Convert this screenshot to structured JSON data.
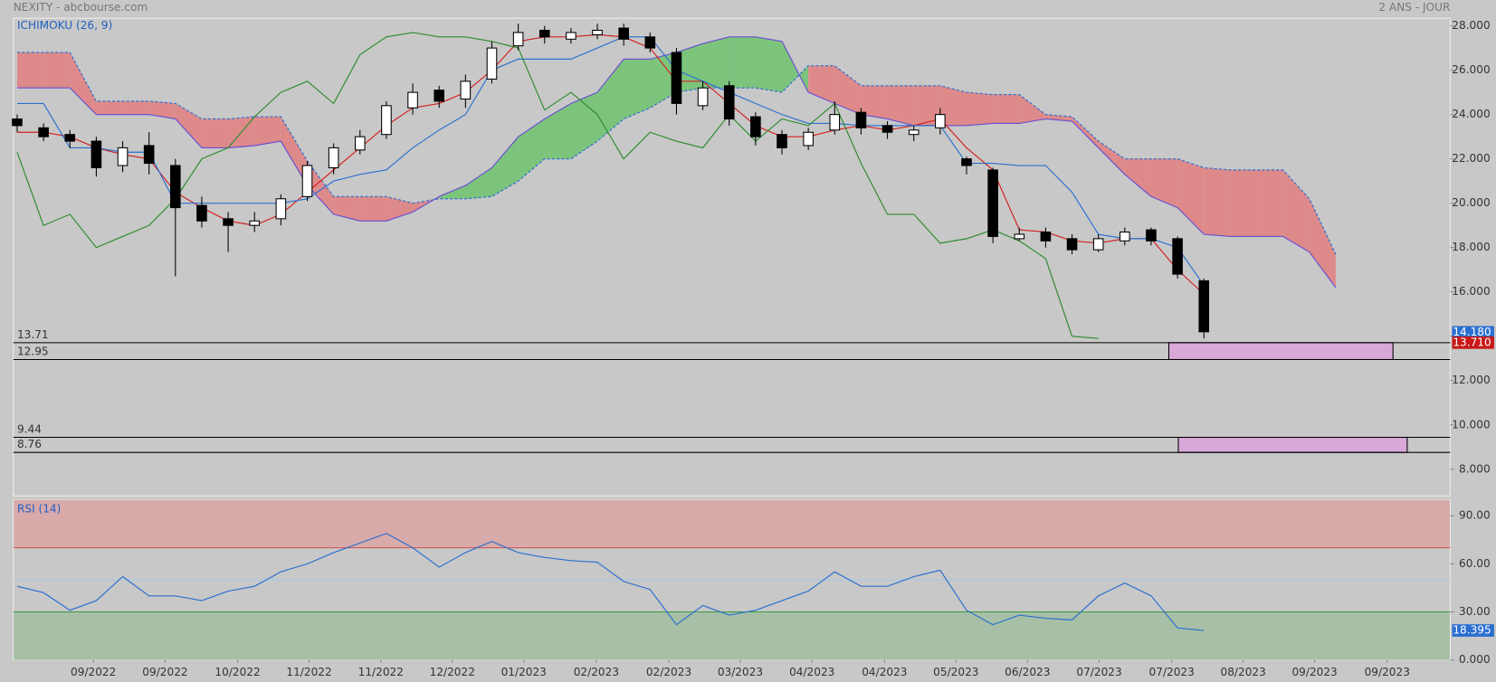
{
  "header": {
    "title": "NEXITY - abcbourse.com",
    "period": "2 ANS - JOUR"
  },
  "chart_data": [
    {
      "type": "candlestick",
      "title": "ICHIMOKU (26, 9)",
      "xlim": [
        -0.145,
        54.34
      ],
      "ylim": [
        6.796,
        28.344
      ],
      "yticks": [
        {
          "value": 28,
          "label": "28.000"
        },
        {
          "value": 26,
          "label": "26.000"
        },
        {
          "value": 24,
          "label": "24.000"
        },
        {
          "value": 22,
          "label": "22.000"
        },
        {
          "value": 20,
          "label": "20.000"
        },
        {
          "value": 18,
          "label": "18.000"
        },
        {
          "value": 16,
          "label": "16.000"
        },
        {
          "value": 14,
          "label": "14.000"
        },
        {
          "value": 12,
          "label": "12.000"
        },
        {
          "value": 10,
          "label": "10.000"
        },
        {
          "value": 8,
          "label": "8.000"
        }
      ],
      "open": [
        23.8,
        23.4,
        23.1,
        22.8,
        21.7,
        22.6,
        21.7,
        19.9,
        19.3,
        19.0,
        19.3,
        20.3,
        21.6,
        22.4,
        23.1,
        24.3,
        25.1,
        24.7,
        25.6,
        27.1,
        27.8,
        27.4,
        27.6,
        27.9,
        27.5,
        26.8,
        24.4,
        25.3,
        23.9,
        23.1,
        22.6,
        23.3,
        24.1,
        23.5,
        23.1,
        23.4,
        22.0,
        21.5,
        18.4,
        18.7,
        18.4,
        17.9,
        18.3,
        18.8,
        18.4,
        16.5
      ],
      "high": [
        24.0,
        23.6,
        23.3,
        23.0,
        22.8,
        23.2,
        22.0,
        20.3,
        19.6,
        19.6,
        20.4,
        21.9,
        22.7,
        23.3,
        24.6,
        25.4,
        25.3,
        25.8,
        27.3,
        28.1,
        28.0,
        27.9,
        28.1,
        28.1,
        27.7,
        27.0,
        25.5,
        25.5,
        24.1,
        23.3,
        23.4,
        24.6,
        24.3,
        23.7,
        23.5,
        24.3,
        22.1,
        21.6,
        18.9,
        18.9,
        18.6,
        18.6,
        18.9,
        18.9,
        18.5,
        16.6
      ],
      "low": [
        23.2,
        22.8,
        22.5,
        21.2,
        21.4,
        21.3,
        16.7,
        18.9,
        17.8,
        18.7,
        19.0,
        20.1,
        21.3,
        22.2,
        22.9,
        24.0,
        24.3,
        24.3,
        25.4,
        26.9,
        27.2,
        27.2,
        27.4,
        27.1,
        26.8,
        24.0,
        24.2,
        23.5,
        22.6,
        22.2,
        22.4,
        23.1,
        23.1,
        22.9,
        22.8,
        23.1,
        21.3,
        18.2,
        18.3,
        18.0,
        17.7,
        17.8,
        18.1,
        18.1,
        16.6,
        13.9
      ],
      "close": [
        23.5,
        23.0,
        22.8,
        21.6,
        22.5,
        21.8,
        19.8,
        19.2,
        19.0,
        19.2,
        20.2,
        21.7,
        22.5,
        23.0,
        24.4,
        25.0,
        24.6,
        25.5,
        27.0,
        27.7,
        27.5,
        27.7,
        27.8,
        27.4,
        27.0,
        24.5,
        25.2,
        23.8,
        23.0,
        22.5,
        23.2,
        24.0,
        23.4,
        23.2,
        23.3,
        24.0,
        21.7,
        18.5,
        18.6,
        18.3,
        17.9,
        18.4,
        18.7,
        18.3,
        16.8,
        14.2
      ],
      "lines": [
        {
          "color": "#d42020",
          "values": [
            23.2,
            23.2,
            23.0,
            22.5,
            22.2,
            22.0,
            20.5,
            19.8,
            19.2,
            19.0,
            19.5,
            20.5,
            21.5,
            22.5,
            23.5,
            24.3,
            24.5,
            25.0,
            26.0,
            27.3,
            27.5,
            27.5,
            27.6,
            27.5,
            27.0,
            25.5,
            25.5,
            24.5,
            23.5,
            23.0,
            23.0,
            23.3,
            23.5,
            23.3,
            23.5,
            23.8,
            22.5,
            21.5,
            18.8,
            18.7,
            18.3,
            18.2,
            18.4,
            18.4,
            17.0,
            15.9
          ]
        },
        {
          "color": "#2a6fd0",
          "values": [
            24.5,
            24.5,
            22.5,
            22.5,
            22.3,
            22.3,
            20.0,
            20.0,
            20.0,
            20.0,
            20.0,
            20.2,
            21.0,
            21.3,
            21.5,
            22.5,
            23.3,
            24.0,
            26.0,
            26.5,
            26.5,
            26.5,
            27.0,
            27.5,
            27.5,
            26.0,
            25.5,
            25.0,
            24.5,
            24.0,
            23.6,
            23.6,
            23.5,
            23.5,
            23.5,
            23.5,
            21.8,
            21.8,
            21.7,
            21.7,
            20.5,
            18.6,
            18.4,
            18.4,
            18.0,
            16.3
          ]
        },
        {
          "color": "#2e8b2e",
          "values": [
            22.3,
            19.0,
            19.5,
            18.0,
            18.5,
            19.0,
            20.2,
            22.0,
            22.5,
            23.9,
            25.0,
            25.5,
            24.5,
            26.7,
            27.5,
            27.7,
            27.5,
            27.5,
            27.3,
            27.0,
            24.2,
            25.0,
            24.0,
            22.0,
            23.2,
            22.8,
            22.5,
            24.0,
            22.8,
            23.8,
            23.5,
            24.5,
            21.8,
            19.5,
            19.5,
            18.2,
            18.4,
            18.8,
            18.3,
            17.5,
            14.0,
            13.9,
            null,
            null,
            null,
            null
          ]
        }
      ],
      "cloud": {
        "up_color": "#7cc47c",
        "down_color": "#de8a8a",
        "span_a_color": "#6a4fd0",
        "span_b_color": "#2a6fd0",
        "span_a": [
          25.2,
          25.2,
          25.2,
          24.0,
          24.0,
          24.0,
          23.8,
          22.5,
          22.5,
          22.6,
          22.8,
          20.8,
          19.5,
          19.2,
          19.2,
          19.6,
          20.3,
          20.8,
          21.6,
          23.0,
          23.8,
          24.5,
          25.0,
          26.5,
          26.5,
          26.8,
          27.2,
          27.5,
          27.5,
          27.3,
          25.0,
          24.5,
          24.0,
          23.8,
          23.5,
          23.5,
          23.5,
          23.6,
          23.6,
          23.8,
          23.7,
          22.5,
          21.3,
          20.3,
          19.8,
          18.6,
          18.5,
          18.5,
          18.5,
          17.8,
          16.2
        ],
        "span_b": [
          26.8,
          26.8,
          26.8,
          24.6,
          24.6,
          24.6,
          24.5,
          23.8,
          23.8,
          23.9,
          23.9,
          21.9,
          20.3,
          20.3,
          20.3,
          20.0,
          20.2,
          20.2,
          20.3,
          21.0,
          22.0,
          22.0,
          22.8,
          23.8,
          24.3,
          25.0,
          25.2,
          25.2,
          25.2,
          25.0,
          26.2,
          26.2,
          25.3,
          25.3,
          25.3,
          25.3,
          25.0,
          24.9,
          24.9,
          24.0,
          23.9,
          22.8,
          22.0,
          22.0,
          22.0,
          21.6,
          21.5,
          21.5,
          21.5,
          20.2,
          17.7
        ]
      },
      "levels": [
        13.71,
        12.95,
        9.44,
        8.76
      ],
      "zones": [
        {
          "top": 13.71,
          "bottom": 12.95,
          "from": 43.67,
          "to": 52.17,
          "color": "#d8a8d8"
        },
        {
          "top": 9.44,
          "bottom": 8.76,
          "from": 44.03,
          "to": 52.71,
          "color": "#d8a8d8"
        }
      ],
      "tags": [
        {
          "value": 14.18,
          "label": "14.180",
          "color": "#2a6fd0"
        },
        {
          "value": 13.71,
          "label": "13.710",
          "color": "#c81818"
        }
      ]
    },
    {
      "type": "line",
      "title": "RSI (14)",
      "color": "#2a6fd0",
      "xlim": [
        -0.145,
        54.34
      ],
      "ylim": [
        0,
        100
      ],
      "yticks": [
        {
          "value": 90,
          "label": "90.00"
        },
        {
          "value": 60,
          "label": "60.00"
        },
        {
          "value": 30,
          "label": "30.00"
        },
        {
          "value": 0,
          "label": "0.000"
        }
      ],
      "values": [
        46,
        42,
        31,
        37,
        52,
        40,
        40,
        37,
        43,
        46,
        55,
        60,
        67,
        73,
        79,
        70,
        58,
        67,
        74,
        67,
        64,
        62,
        61,
        49,
        44,
        22,
        34,
        28,
        31,
        37,
        43,
        55,
        46,
        46,
        52,
        56,
        31,
        22,
        28,
        26,
        25,
        40,
        48,
        40,
        20,
        18.395
      ],
      "zones": [
        {
          "from": 70,
          "to": 100,
          "color": "#d8aaaa",
          "line": "#d05050"
        },
        {
          "from": 0,
          "to": 30,
          "color": "#a6bfa6",
          "line": "#3c9a3c"
        }
      ],
      "midline": {
        "value": 50,
        "color": "#a8c8e8"
      },
      "tag": {
        "value": 18.395,
        "label": "18.395",
        "color": "#2a6fd0"
      },
      "xticks": [
        {
          "value": 2.89,
          "label": "09/2022"
        },
        {
          "value": 5.61,
          "label": "09/2022"
        },
        {
          "value": 8.36,
          "label": "10/2022"
        },
        {
          "value": 11.07,
          "label": "11/2022"
        },
        {
          "value": 13.79,
          "label": "11/2022"
        },
        {
          "value": 16.5,
          "label": "12/2022"
        },
        {
          "value": 19.21,
          "label": "01/2023"
        },
        {
          "value": 21.96,
          "label": "02/2023"
        },
        {
          "value": 24.71,
          "label": "02/2023"
        },
        {
          "value": 27.42,
          "label": "03/2023"
        },
        {
          "value": 30.14,
          "label": "04/2023"
        },
        {
          "value": 32.89,
          "label": "04/2023"
        },
        {
          "value": 35.6,
          "label": "05/2023"
        },
        {
          "value": 38.31,
          "label": "06/2023"
        },
        {
          "value": 41.03,
          "label": "07/2023"
        },
        {
          "value": 43.78,
          "label": "07/2023"
        },
        {
          "value": 46.49,
          "label": "08/2023"
        },
        {
          "value": 49.2,
          "label": "09/2023"
        },
        {
          "value": 51.95,
          "label": "09/2023"
        }
      ]
    }
  ]
}
